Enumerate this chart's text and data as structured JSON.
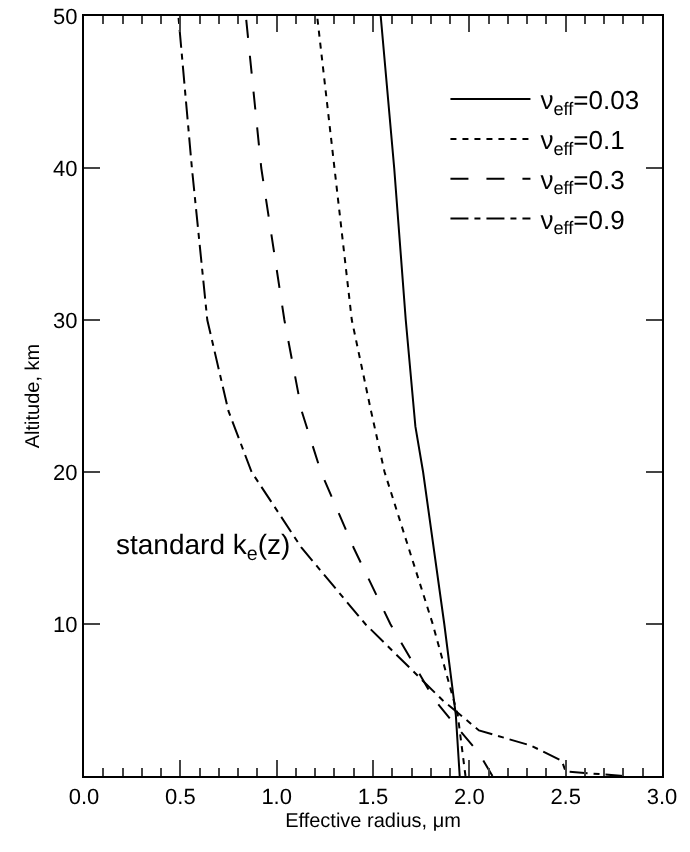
{
  "chart_data": {
    "type": "line",
    "xlabel": "Effective radius, μm",
    "ylabel": "Altitude, km",
    "xlim": [
      0,
      3
    ],
    "ylim": [
      0,
      50
    ],
    "xticks": [
      {
        "value": 0,
        "label": "0.0"
      },
      {
        "value": 0.5,
        "label": "0.5"
      },
      {
        "value": 1,
        "label": "1.0"
      },
      {
        "value": 1.5,
        "label": "1.5"
      },
      {
        "value": 2,
        "label": "2.0"
      },
      {
        "value": 2.5,
        "label": "2.5"
      },
      {
        "value": 3,
        "label": "3.0"
      }
    ],
    "yticks": [
      10,
      20,
      30,
      40,
      50
    ],
    "grid": false,
    "legend": "top right",
    "marker": "none",
    "annotations": [
      "standard k$_{e}$(z)"
    ],
    "series": [
      {
        "name": "ν$_{eff}$=0.03",
        "color": "#000000",
        "line_style": "solid",
        "x": [
          1.95,
          1.93,
          1.87,
          1.76,
          1.72,
          1.67,
          1.61,
          1.54
        ],
        "values": [
          0,
          4,
          10,
          20,
          23,
          30,
          40,
          50
        ]
      },
      {
        "name": "ν$_{eff}$=0.1",
        "color": "#000000",
        "line_style": "dotted",
        "x": [
          1.98,
          1.94,
          1.81,
          1.56,
          1.49,
          1.39,
          1.3,
          1.21
        ],
        "values": [
          0,
          4,
          10,
          20,
          24,
          30,
          40,
          50
        ]
      },
      {
        "name": "ν$_{eff}$=0.3",
        "color": "#000000",
        "line_style": "dashed",
        "x": [
          2.12,
          2.05,
          1.95,
          1.82,
          1.59,
          1.4,
          1.23,
          1.13,
          1.04,
          0.92,
          0.84
        ],
        "values": [
          0,
          1.5,
          3,
          5,
          10,
          15,
          20,
          24,
          30,
          40,
          50
        ]
      },
      {
        "name": "ν$_{eff}$=0.9",
        "color": "#000000",
        "line_style": "dashdot",
        "x": [
          2.8,
          2.5,
          2.48,
          2.32,
          2.05,
          1.86,
          1.46,
          1.13,
          0.87,
          0.75,
          0.64,
          0.56,
          0.49
        ],
        "values": [
          0,
          0.3,
          1,
          2,
          3,
          5,
          10,
          15,
          20,
          24,
          30,
          40,
          50
        ]
      }
    ]
  }
}
